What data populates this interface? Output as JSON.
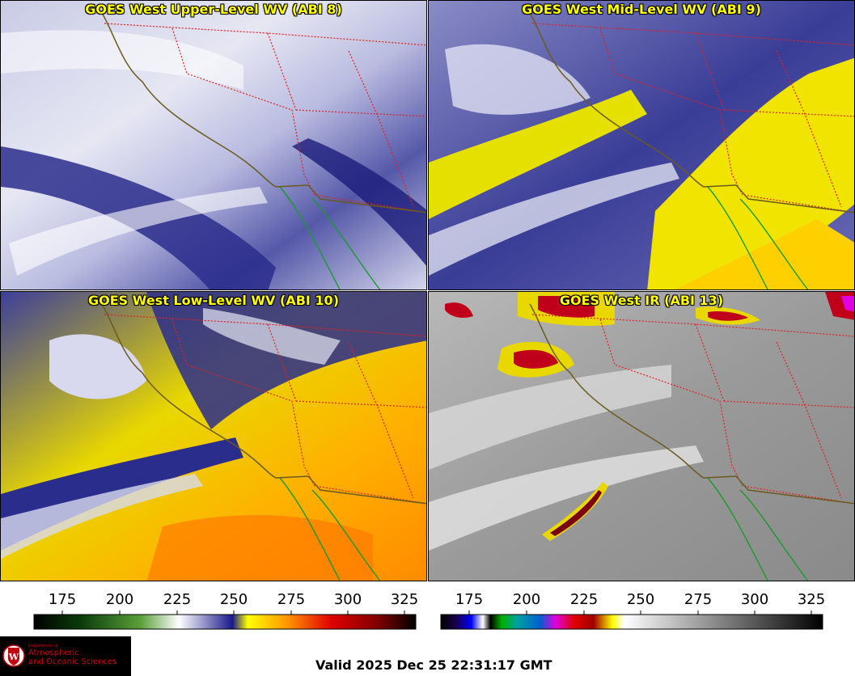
{
  "panels": [
    {
      "title": "GOES West Upper-Level WV (ABI 8)"
    },
    {
      "title": "GOES West Mid-Level WV (ABI 9)"
    },
    {
      "title": "GOES West Low-Level WV (ABI 10)"
    },
    {
      "title": "GOES West IR (ABI 13)"
    }
  ],
  "colorbars": {
    "wv": {
      "ticks": [
        "175",
        "200",
        "225",
        "250",
        "275",
        "300",
        "325"
      ]
    },
    "ir": {
      "ticks": [
        "175",
        "200",
        "225",
        "250",
        "275",
        "300",
        "325"
      ]
    }
  },
  "logo": {
    "dept": "Department of",
    "line1": "Atmospheric",
    "line2": "and Oceanic Sciences",
    "letter": "W"
  },
  "valid_time": "Valid 2025 Dec 25 22:31:17 GMT",
  "colors": {
    "state_borders": "#e02020",
    "coastline": "#6b5a1e",
    "mexico_coast": "#1a9a2a",
    "title_text": "#ffff00",
    "logo_red": "#c5050c"
  }
}
